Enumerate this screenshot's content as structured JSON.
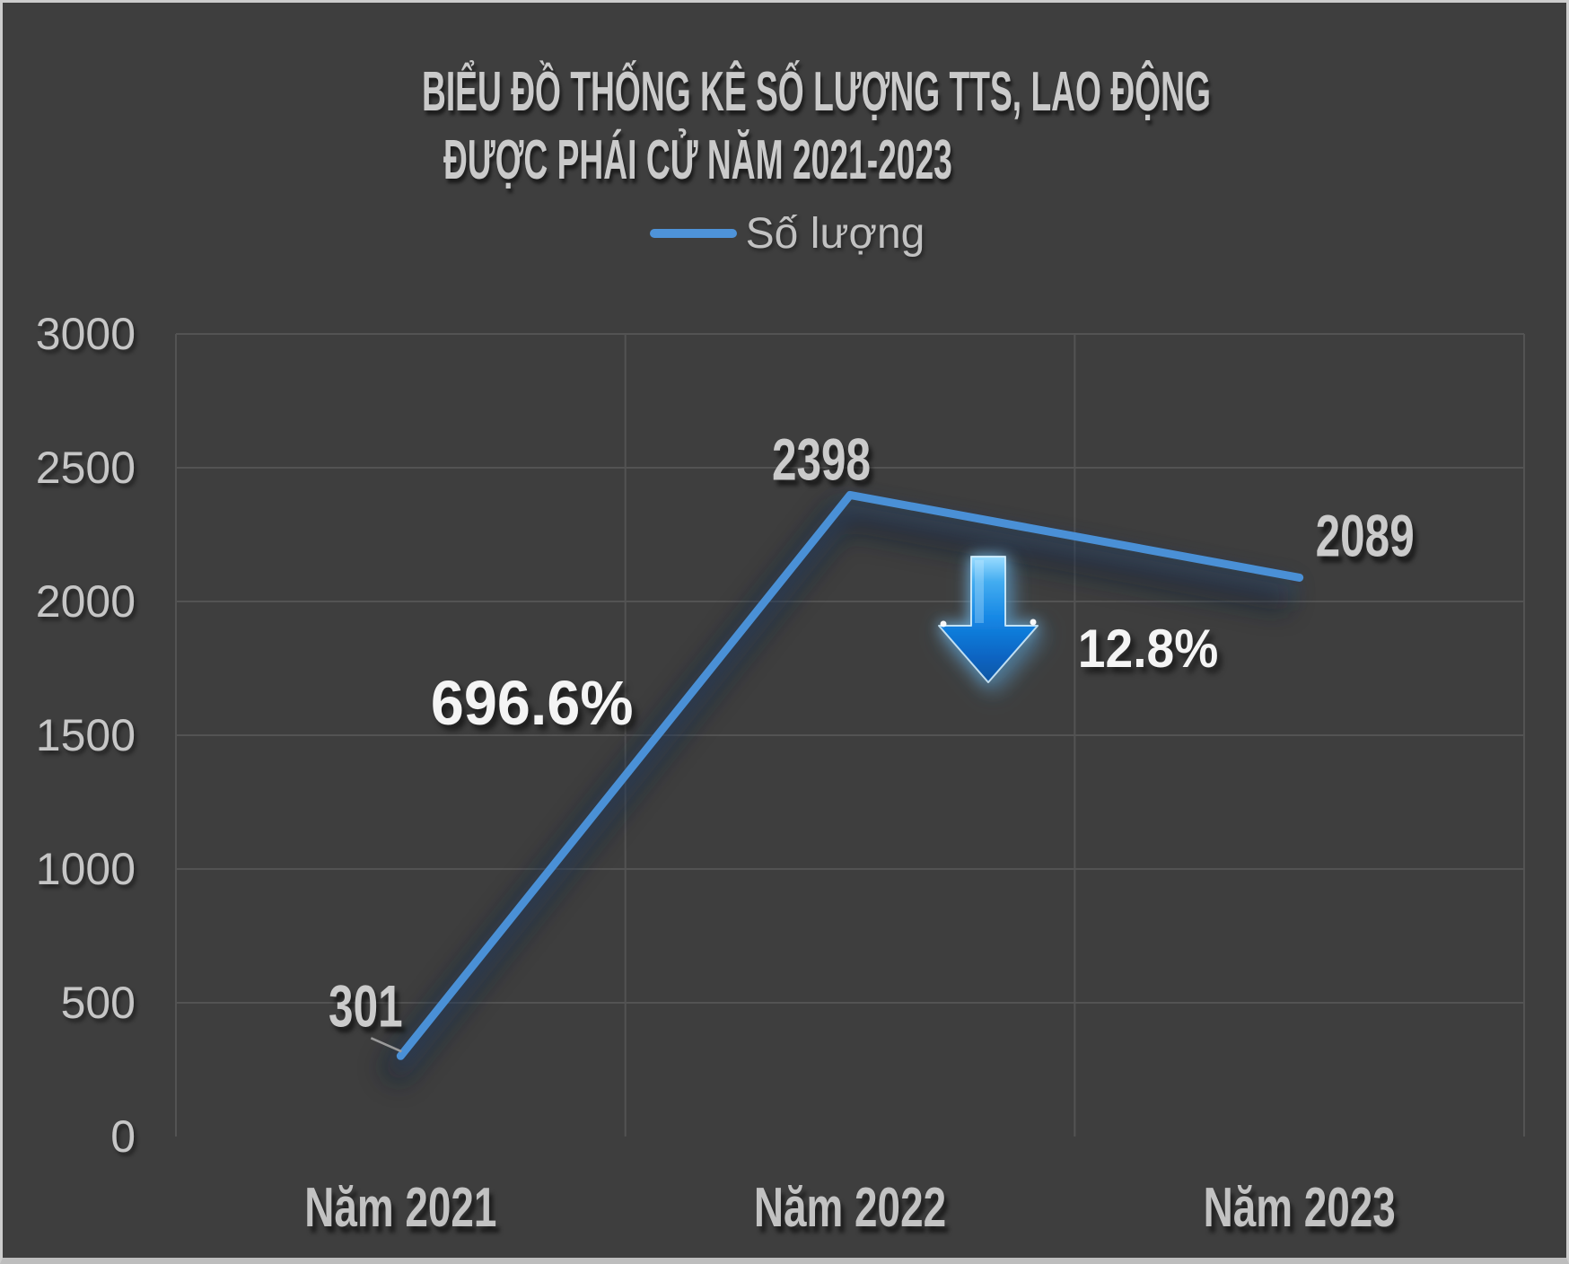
{
  "chart_data": {
    "type": "line",
    "title": [
      "BIỂU ĐỒ THỐNG KÊ SỐ LƯỢNG TTS, LAO ĐỘNG",
      "ĐƯỢC PHÁI CỬ NĂM 2021-2023"
    ],
    "legend": {
      "label": "Số lượng",
      "position": "top-center",
      "swatch": "line"
    },
    "categories": [
      "Năm 2021",
      "Năm 2022",
      "Năm 2023"
    ],
    "series": [
      {
        "name": "Số lượng",
        "values": [
          301,
          2398,
          2089
        ]
      }
    ],
    "data_labels": [
      "301",
      "2398",
      "2089"
    ],
    "y_ticks": [
      0,
      500,
      1000,
      1500,
      2000,
      2500,
      3000
    ],
    "ylim": [
      0,
      3000
    ],
    "grid": true,
    "annotations": [
      {
        "text": "696.6%"
      },
      {
        "text": "12.8%",
        "icon": "down-arrow"
      }
    ],
    "colors": {
      "background": "#3e3e3e",
      "gridline": "#535353",
      "line": "#4a90d6",
      "arrow": "#1080de",
      "label_gray": "#cbcbcb",
      "axis_text": "#c6c6c6",
      "annotation_white": "#f4f4f4",
      "frame": "#cdcdcd"
    }
  }
}
